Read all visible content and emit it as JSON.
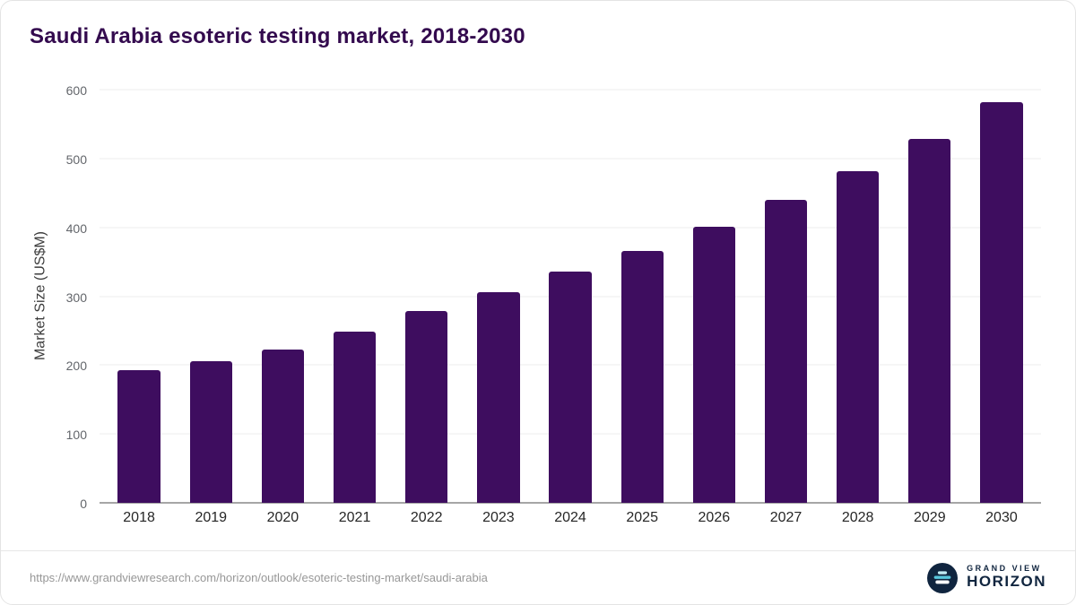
{
  "title": "Saudi Arabia esoteric testing market, 2018-2030",
  "source_url": "https://www.grandviewresearch.com/horizon/outlook/esoteric-testing-market/saudi-arabia",
  "logo": {
    "line1": "GRAND VIEW",
    "line2": "HORIZON"
  },
  "colors": {
    "bar": "#3E0D5F",
    "title": "#330A4E",
    "grid": "#EDEDED",
    "axis_line": "#4D4D4D",
    "logo_navy": "#10253F",
    "logo_blue": "#58C7DD"
  },
  "chart_data": {
    "type": "bar",
    "title": "Saudi Arabia esoteric testing market, 2018-2030",
    "categories": [
      "2018",
      "2019",
      "2020",
      "2021",
      "2022",
      "2023",
      "2024",
      "2025",
      "2026",
      "2027",
      "2028",
      "2029",
      "2030"
    ],
    "values": [
      192,
      206,
      222,
      248,
      278,
      306,
      336,
      366,
      401,
      440,
      482,
      529,
      582
    ],
    "xlabel": "",
    "ylabel": "Market Size (US$M)",
    "ylim": [
      0,
      600
    ],
    "yticks": [
      0,
      100,
      200,
      300,
      400,
      500,
      600
    ],
    "grid": true,
    "legend": "none",
    "bar_color": "#3E0D5F"
  }
}
